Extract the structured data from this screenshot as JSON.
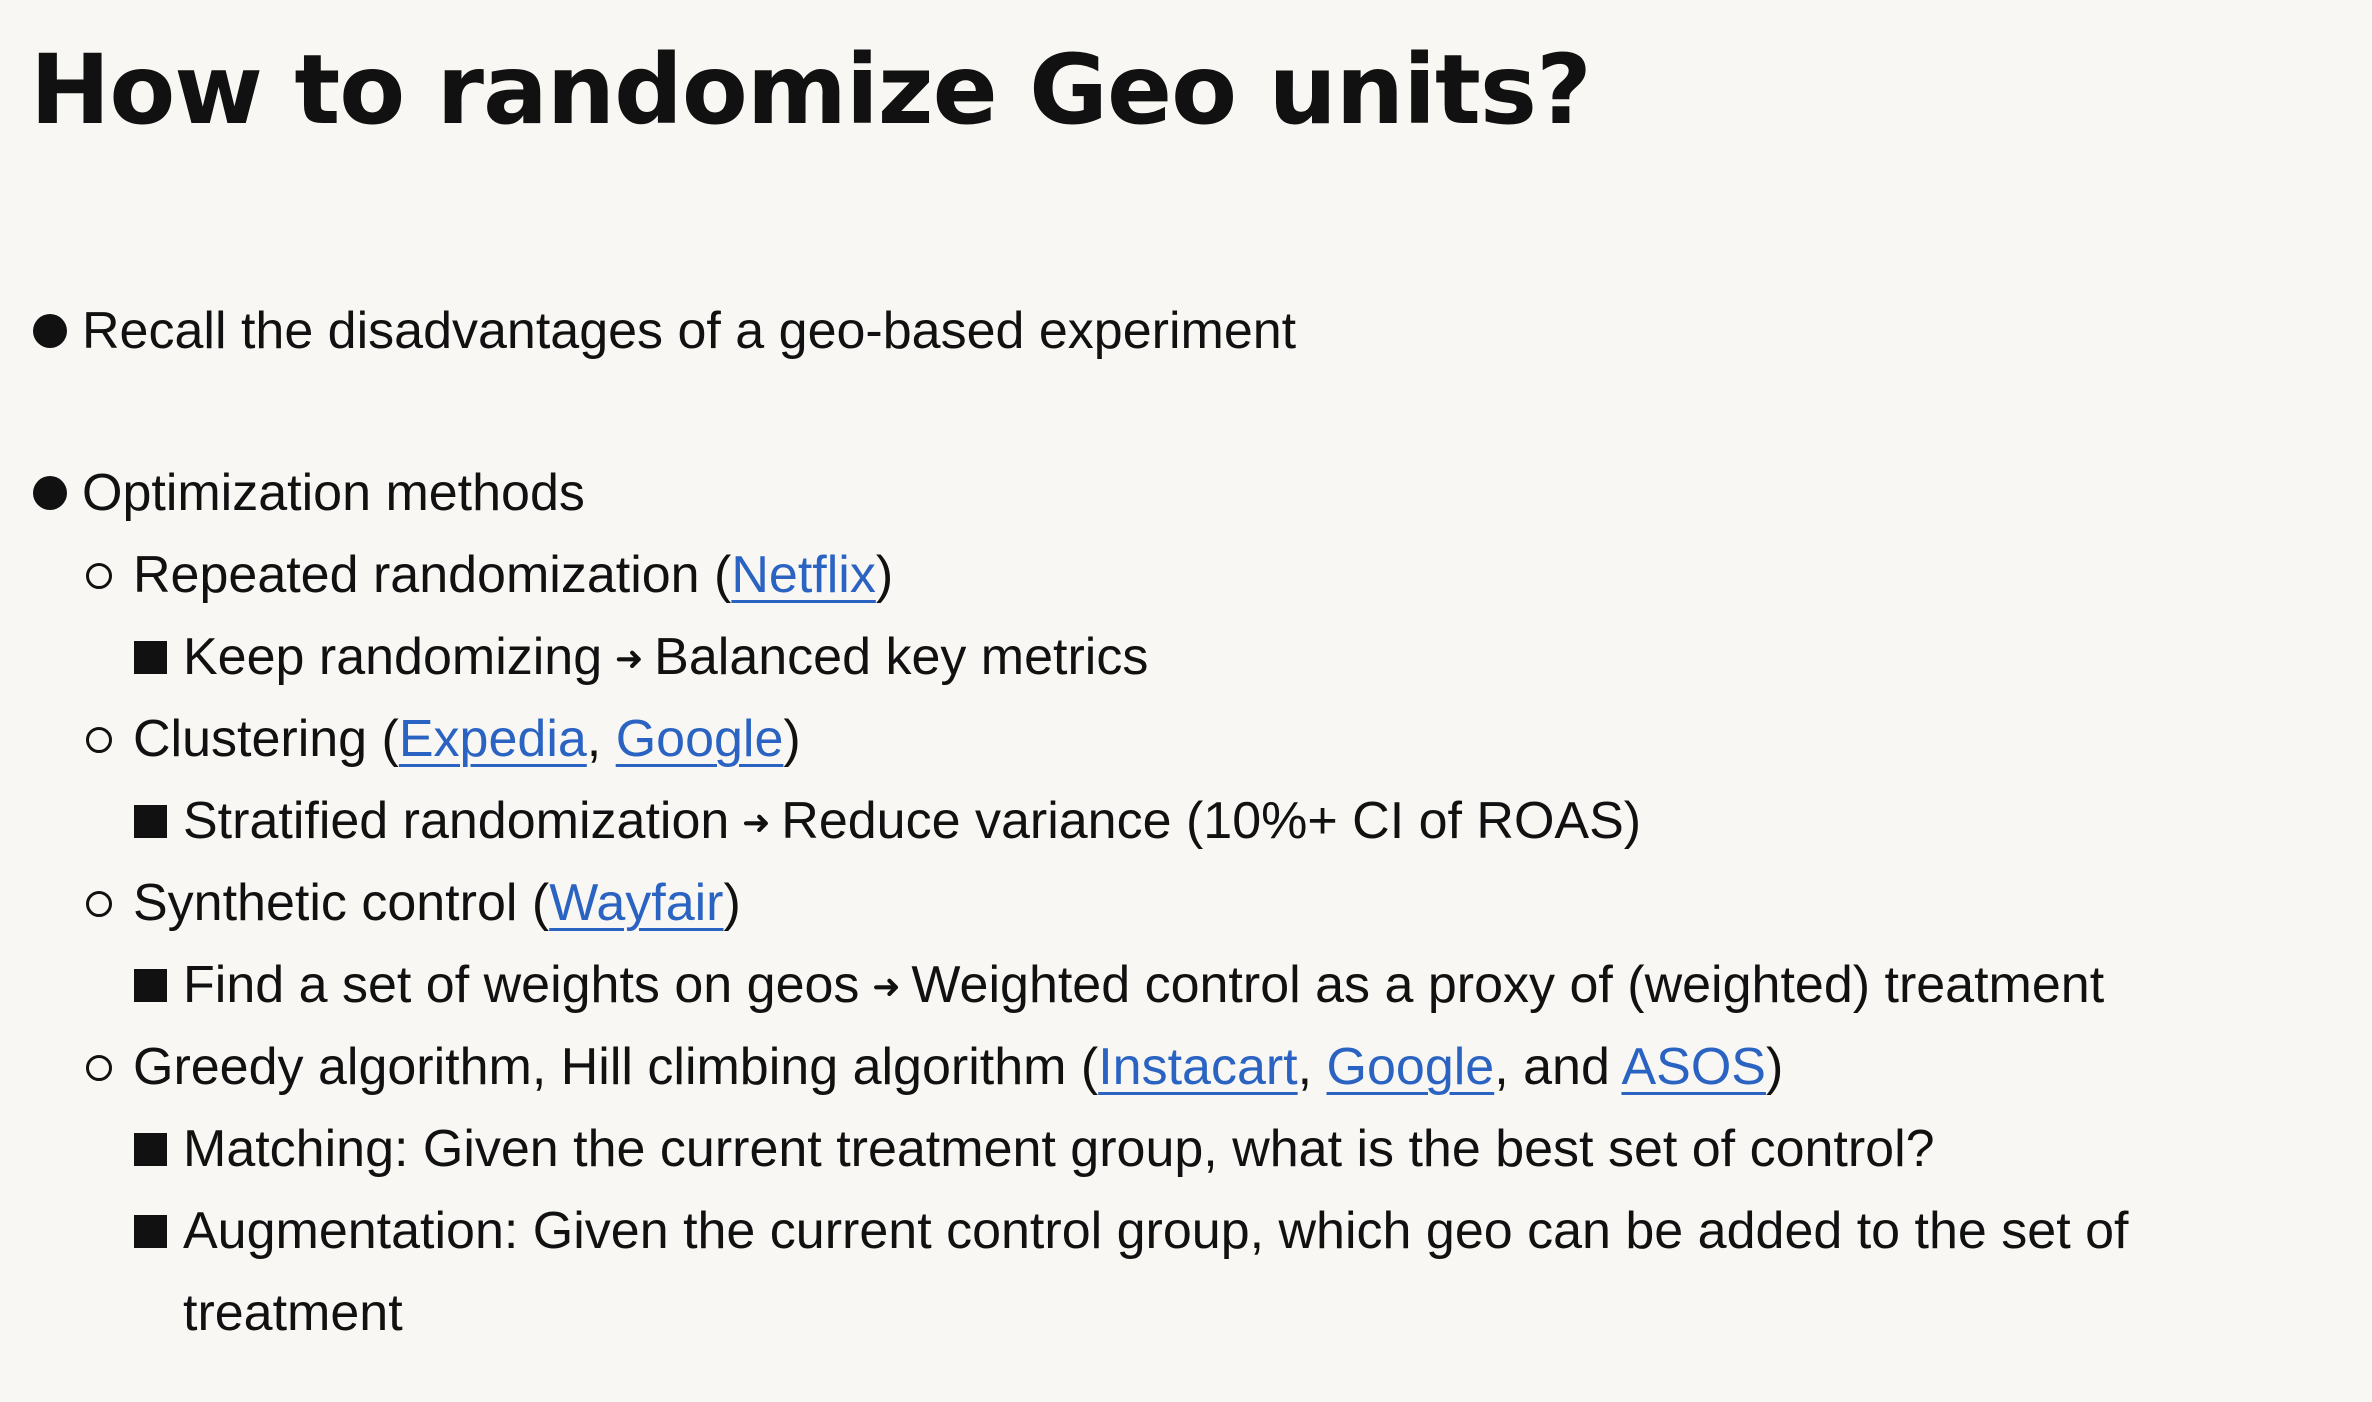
{
  "slide": {
    "title": "How to randomize Geo units?",
    "items": [
      {
        "text": "Recall the disadvantages of a geo-based experiment"
      },
      {
        "text": "Optimization methods",
        "children": [
          {
            "before": "Repeated randomization (",
            "links": [
              "Netflix"
            ],
            "after": ")",
            "detail": {
              "left": "Keep randomizing",
              "arrow": "➜",
              "right": "Balanced key metrics"
            }
          },
          {
            "before": "Clustering (",
            "links": [
              "Expedia",
              "Google"
            ],
            "separators": [
              ", "
            ],
            "after": ")",
            "detail": {
              "left": "Stratified randomization",
              "arrow": "➜",
              "right": "Reduce variance (10%+ CI of ROAS)"
            }
          },
          {
            "before": "Synthetic control (",
            "links": [
              "Wayfair"
            ],
            "after": ")",
            "detail": {
              "left": "Find a set of weights on geos",
              "arrow": "➜",
              "right": "Weighted control as a proxy of (weighted) treatment"
            }
          },
          {
            "before": "Greedy algorithm, Hill climbing algorithm (",
            "links": [
              "Instacart",
              "Google",
              "ASOS"
            ],
            "separators": [
              ", ",
              ", and "
            ],
            "after": ")",
            "details": [
              "Matching: Given the current treatment group, what is the best set of control?",
              "Augmentation: Given the current control group, which geo can be added to the set of",
              "treatment"
            ]
          }
        ]
      }
    ]
  },
  "colors": {
    "background": "#f8f7f3",
    "text": "#111111",
    "link": "#2a63c2"
  },
  "icons": {
    "level1": "filled-circle-bullet",
    "level2": "hollow-circle-bullet",
    "level3": "filled-square-bullet",
    "arrow": "right-arrow-icon"
  }
}
